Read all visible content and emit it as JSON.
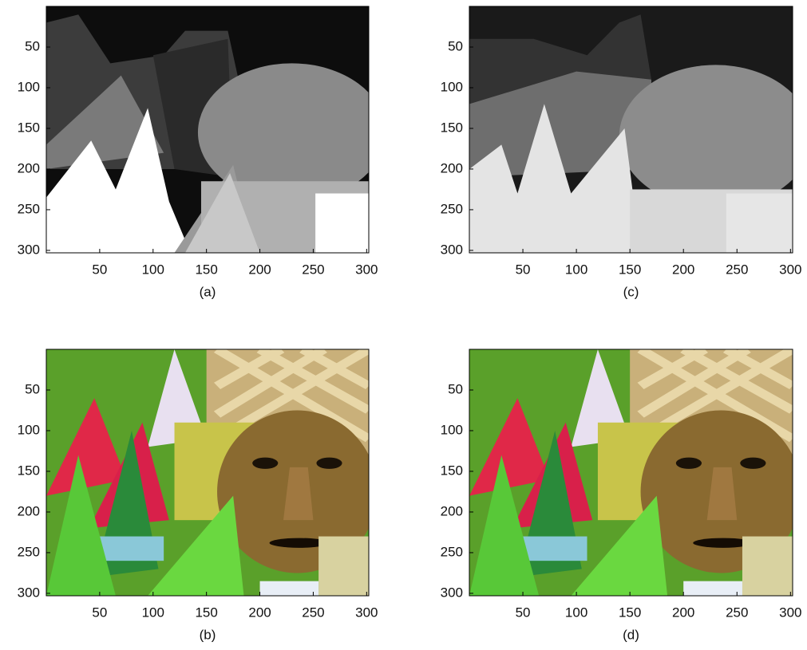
{
  "panels": [
    {
      "caption": "(a)",
      "xlim": [
        0,
        302
      ],
      "ylim": [
        0,
        303
      ],
      "xticks": [
        50,
        100,
        150,
        200,
        250,
        300
      ],
      "yticks": [
        50,
        100,
        150,
        200,
        250,
        300
      ]
    },
    {
      "caption": "(b)",
      "xlim": [
        0,
        302
      ],
      "ylim": [
        0,
        303
      ],
      "xticks": [
        50,
        100,
        150,
        200,
        250,
        300
      ],
      "yticks": [
        50,
        100,
        150,
        200,
        250,
        300
      ]
    },
    {
      "caption": "(c)",
      "xlim": [
        0,
        302
      ],
      "ylim": [
        0,
        303
      ],
      "xticks": [
        50,
        100,
        150,
        200,
        250,
        300
      ],
      "yticks": [
        50,
        100,
        150,
        200,
        250,
        300
      ]
    },
    {
      "caption": "(d)",
      "xlim": [
        0,
        302
      ],
      "ylim": [
        0,
        303
      ],
      "xticks": [
        50,
        100,
        150,
        200,
        250,
        300
      ],
      "yticks": [
        50,
        100,
        150,
        200,
        250,
        300
      ]
    }
  ]
}
